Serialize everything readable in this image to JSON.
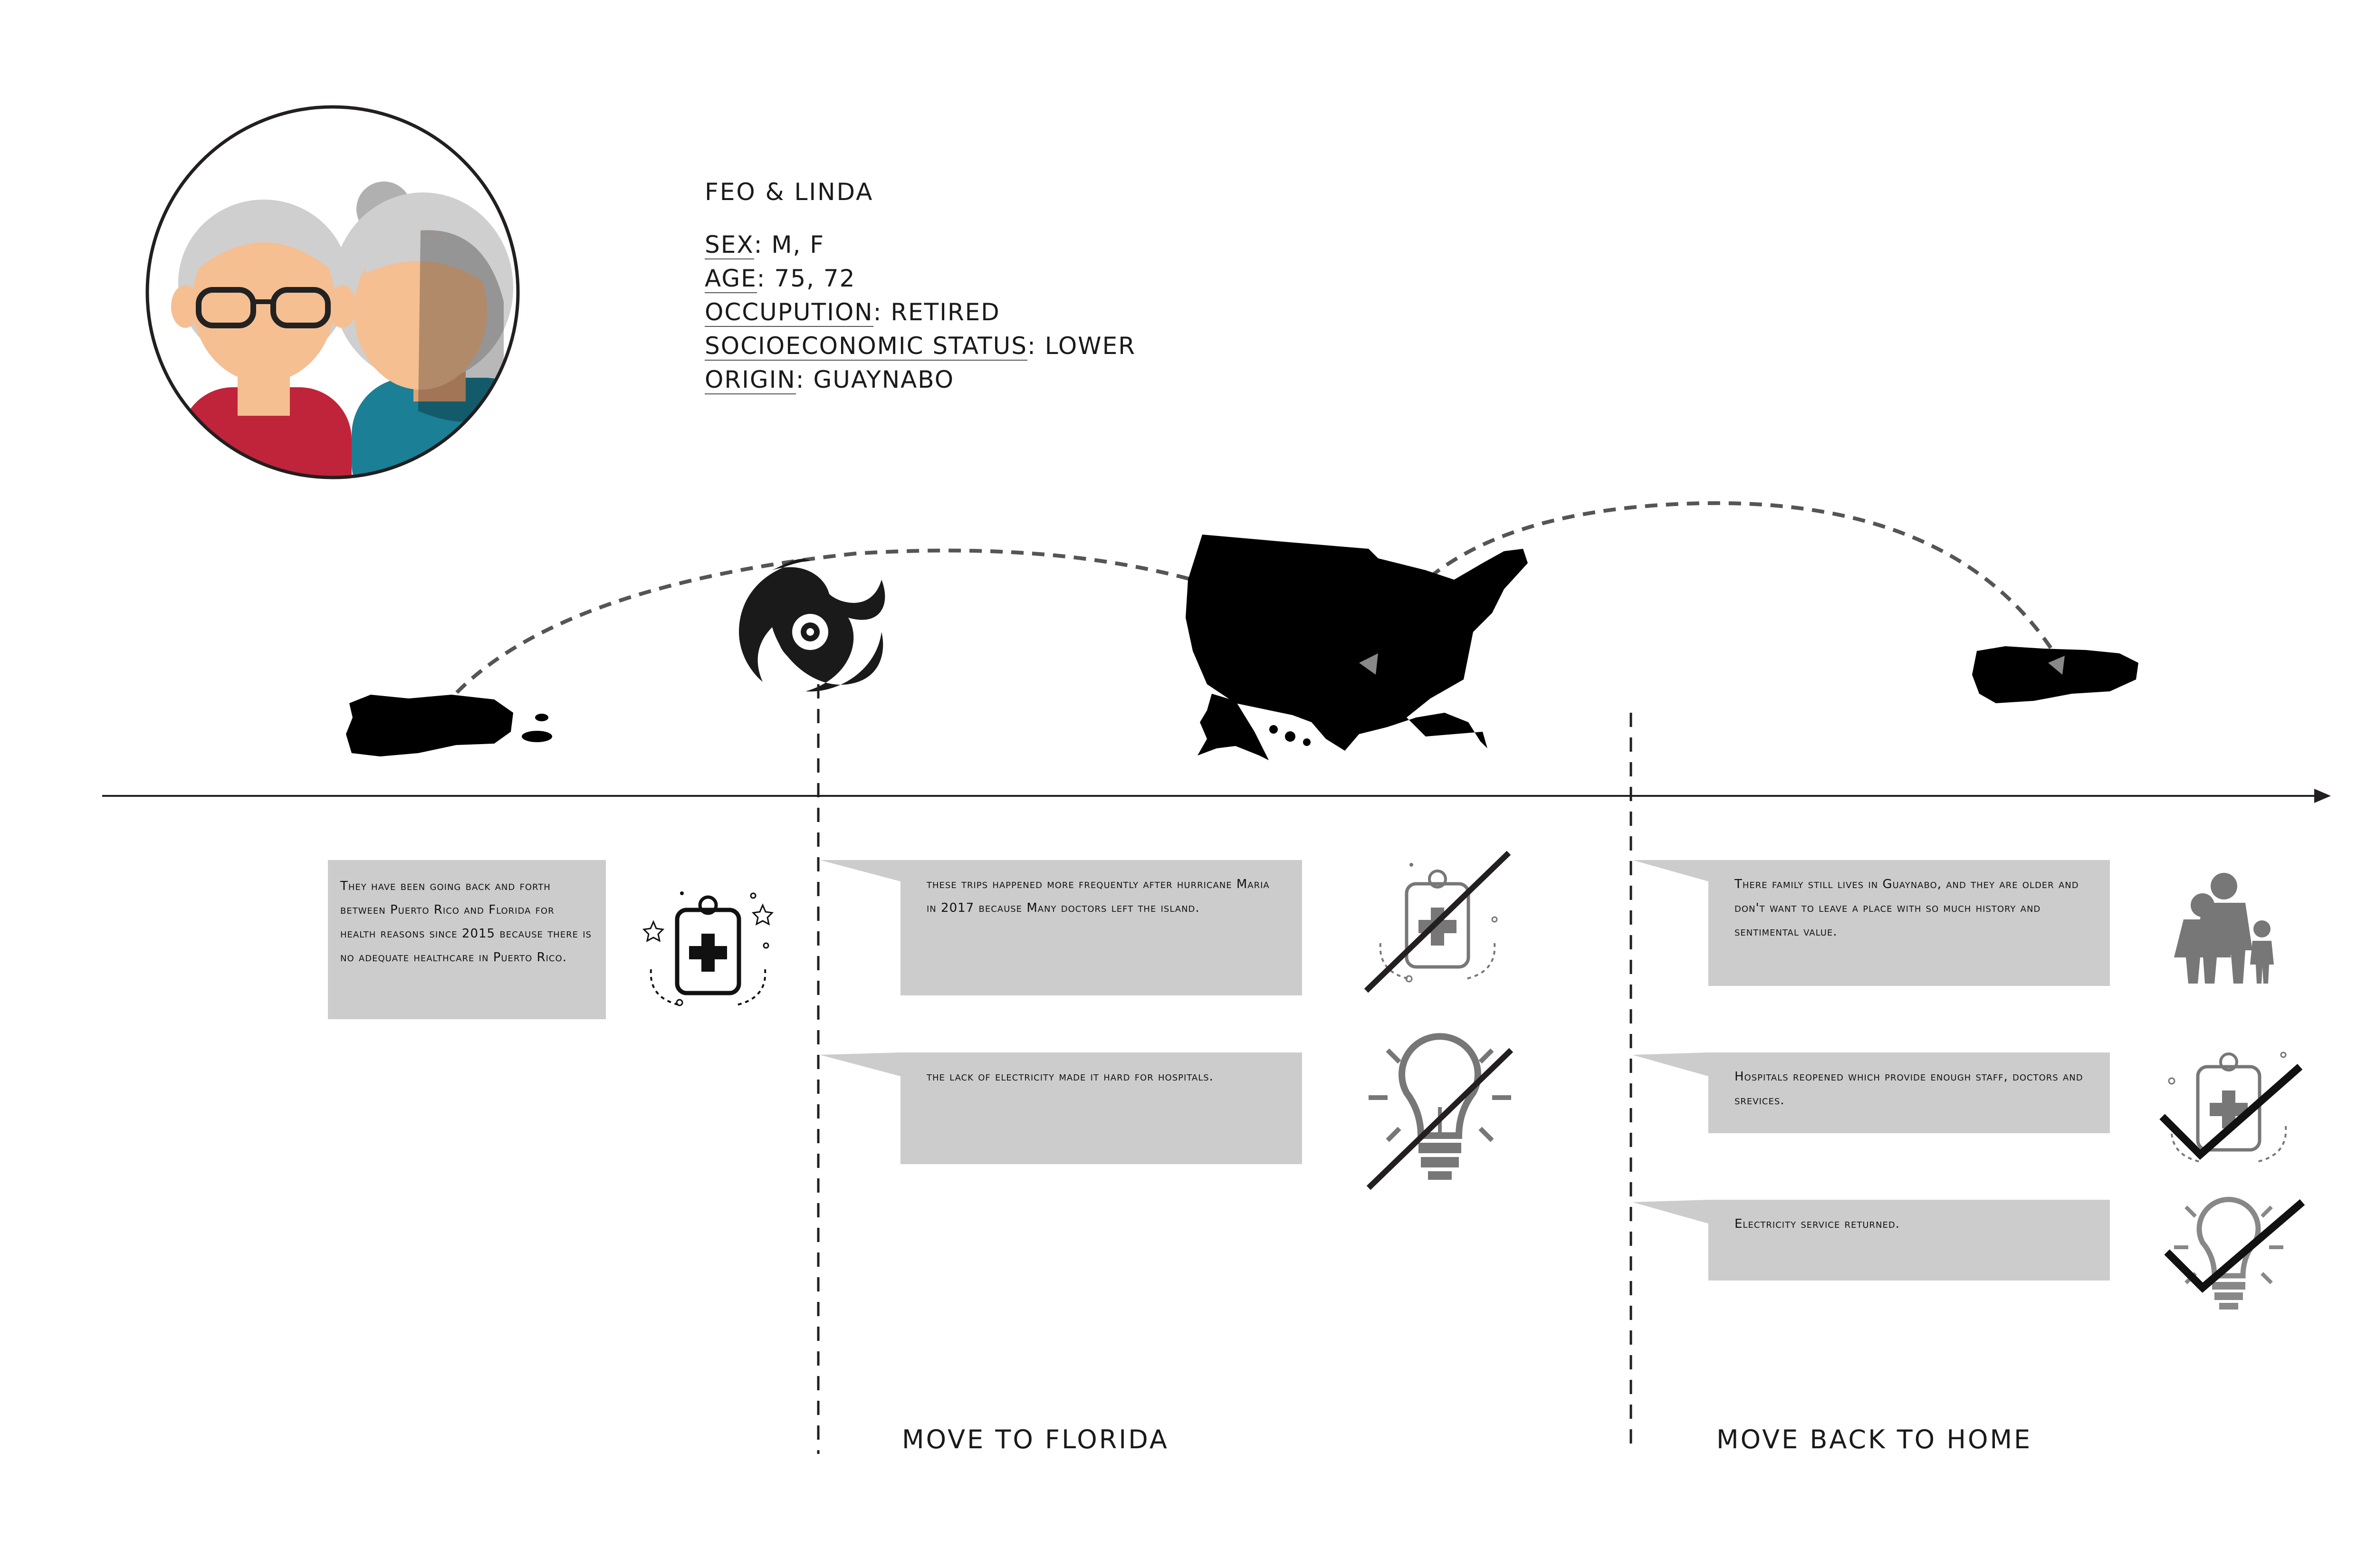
{
  "persona": {
    "name": "FEO & LINDA",
    "attributes": [
      {
        "label": "SEX",
        "value": ": M, F"
      },
      {
        "label": "AGE",
        "value": ": 75, 72"
      },
      {
        "label": "OCCUPUTION",
        "value": ": RETIRED"
      },
      {
        "label": "SOCIOECONOMIC STATUS",
        "value": ": LOWER"
      },
      {
        "label": "ORIGIN",
        "value": ": GUAYNABO"
      }
    ]
  },
  "notes": {
    "n1": "They have been going back and forth between Puerto Rico and Florida for health reasons since 2015 because there is no adequate healthcare in Puerto Rico.",
    "n2": "these trips happened more frequently after hurricane Maria in 2017 because Many doctors left the island.",
    "n3": "the lack of electricity made it hard for hospitals.",
    "n4": "There family still lives in Guaynabo, and they are older and don't want to leave a place with so much history and sentimental value.",
    "n5": "Hospitals reopened which provide enough staff, doctors and srevices.",
    "n6": "Electricity service returned."
  },
  "stages": {
    "florida": "MOVE TO FLORIDA",
    "home": "MOVE BACK TO HOME"
  },
  "icons": {
    "avatar": "elderly-couple-avatar",
    "pr1": "puerto-rico-map-icon",
    "hurricane": "hurricane-icon",
    "usa": "usa-map-icon",
    "pr2": "puerto-rico-map-icon",
    "family": "family-icon"
  },
  "colors": {
    "note_bg": "#cccccc",
    "ink": "#1a1a1a",
    "gray_icon": "#777777",
    "shirt_red": "#c0243a",
    "shirt_teal": "#1b7f95",
    "skin": "#f5bf92",
    "hair": "#cfcfcf"
  }
}
